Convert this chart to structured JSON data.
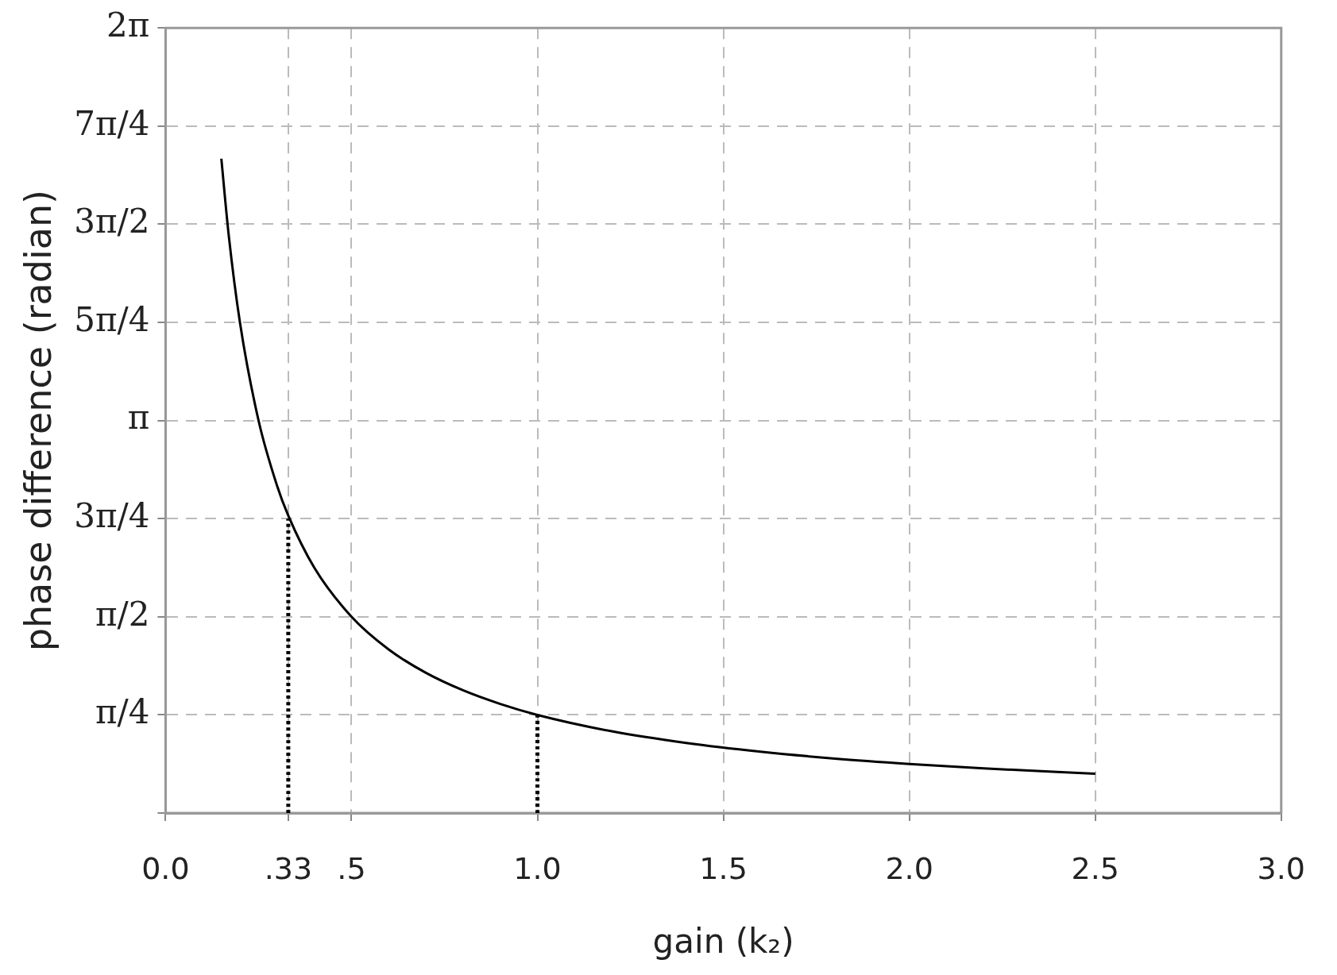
{
  "chart_data": {
    "type": "line",
    "xlabel": "gain (k₂)",
    "ylabel": "phase difference (radian)",
    "xlim": [
      0,
      3
    ],
    "ylim": [
      0,
      6.283
    ],
    "xticks": [
      {
        "value": 0,
        "label": "0.0"
      },
      {
        "value": 0.33,
        "label": ".33"
      },
      {
        "value": 0.5,
        "label": ".5"
      },
      {
        "value": 1,
        "label": "1.0"
      },
      {
        "value": 1.5,
        "label": "1.5"
      },
      {
        "value": 2,
        "label": "2.0"
      },
      {
        "value": 2.5,
        "label": "2.5"
      },
      {
        "value": 3,
        "label": "3.0"
      }
    ],
    "yticks": [
      {
        "value": 0,
        "label": null
      },
      {
        "value": 0.785,
        "label": "π/4"
      },
      {
        "value": 1.571,
        "label": "π/2"
      },
      {
        "value": 2.356,
        "label": "3π/4"
      },
      {
        "value": 3.142,
        "label": "π"
      },
      {
        "value": 3.927,
        "label": "5π/4"
      },
      {
        "value": 4.712,
        "label": "3π/2"
      },
      {
        "value": 5.498,
        "label": "7π/4"
      },
      {
        "value": 6.283,
        "label": "2π"
      }
    ],
    "grid": true,
    "legend": false,
    "marker": "none",
    "series": [
      {
        "type": "line",
        "color": "#000000",
        "line_style": "solid",
        "x": [
          0.15,
          0.17,
          0.2,
          0.25,
          0.3,
          0.33,
          0.4,
          0.5,
          0.6,
          0.7,
          0.8,
          0.9,
          1.0,
          1.2,
          1.4,
          1.6,
          1.8,
          2.0,
          2.2,
          2.5
        ],
        "values": [
          5.236,
          4.62,
          3.927,
          3.142,
          2.618,
          2.38,
          1.963,
          1.571,
          1.309,
          1.122,
          0.982,
          0.873,
          0.785,
          0.654,
          0.561,
          0.491,
          0.436,
          0.393,
          0.357,
          0.314
        ]
      },
      {
        "type": "line",
        "color": "#000000",
        "line_style": "dotted",
        "x": [
          0.33,
          0.33
        ],
        "values": [
          0,
          2.356
        ]
      },
      {
        "type": "line",
        "color": "#000000",
        "line_style": "dotted",
        "x": [
          1.0,
          1.0
        ],
        "values": [
          0,
          0.785
        ]
      }
    ]
  }
}
